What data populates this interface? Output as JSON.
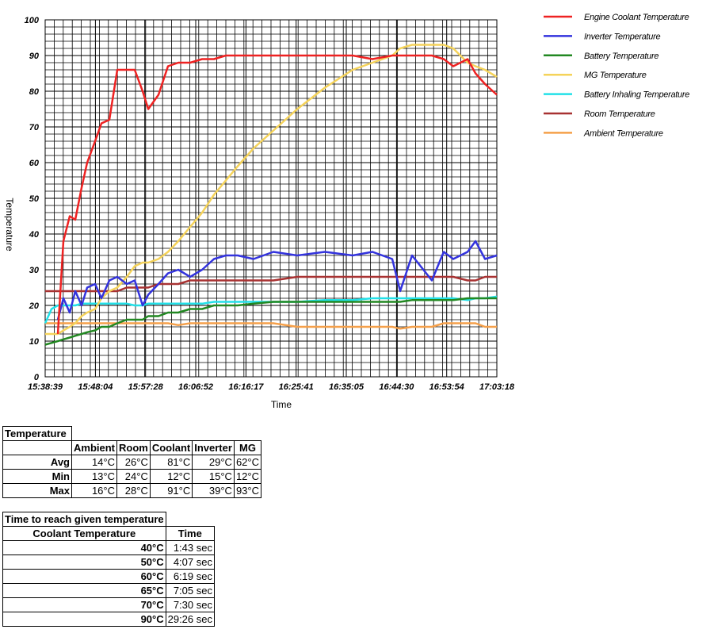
{
  "chart_data": {
    "type": "line",
    "x_label": "Time",
    "y_label": "Temperature",
    "x": [
      "15:38:39",
      "15:39:50",
      "15:41:02",
      "15:42:04",
      "15:43:15",
      "15:44:18",
      "15:45:29",
      "15:46:31",
      "15:48:00",
      "15:49:12",
      "15:50:41",
      "15:52:10",
      "15:53:57",
      "15:55:26",
      "15:56:55",
      "15:57:58",
      "15:59:53",
      "16:01:40",
      "16:03:36",
      "16:05:50",
      "16:08:04",
      "16:10:17",
      "16:12:31",
      "16:14:44",
      "16:17:42",
      "16:21:25",
      "16:25:53",
      "16:31:04",
      "16:36:16",
      "16:39:59",
      "16:43:42",
      "16:45:11",
      "16:47:25",
      "16:51:07",
      "16:53:21",
      "16:55:08",
      "16:57:49",
      "16:59:18",
      "17:01:05",
      "17:03:18"
    ],
    "xlim": [
      "15:38:39",
      "17:03:18"
    ],
    "xticks": [
      "15:38:39",
      "15:48:04",
      "15:57:28",
      "16:06:52",
      "16:16:17",
      "16:25:41",
      "16:35:05",
      "16:44:30",
      "16:53:54",
      "17:03:18"
    ],
    "ylim": [
      0,
      100
    ],
    "yticks": [
      0,
      10,
      20,
      30,
      40,
      50,
      60,
      70,
      80,
      90,
      100
    ],
    "grid": true,
    "legend": "right",
    "series": [
      {
        "name": "Engine Coolant Temperature",
        "color": "#ee2222",
        "values": [
          null,
          null,
          12,
          38,
          45,
          44,
          53,
          60,
          66,
          71,
          72,
          86,
          86,
          86,
          80,
          75,
          79,
          87,
          88,
          88,
          89,
          89,
          90,
          90,
          90,
          90,
          90,
          90,
          90,
          89,
          90,
          90,
          90,
          90,
          89,
          87,
          89,
          85,
          82,
          79
        ]
      },
      {
        "name": "Inverter Temperature",
        "color": "#3333dd",
        "values": [
          null,
          null,
          16,
          22,
          18,
          24,
          20,
          25,
          26,
          22,
          27,
          28,
          26,
          27,
          20,
          23,
          26,
          29,
          30,
          28,
          30,
          33,
          34,
          34,
          33,
          35,
          34,
          35,
          34,
          35,
          33,
          24,
          34,
          27,
          35,
          33,
          35,
          38,
          33,
          34
        ]
      },
      {
        "name": "Battery Temperature",
        "color": "#228822",
        "values": [
          9,
          9.5,
          10,
          10.5,
          11,
          11.5,
          12,
          12.5,
          13,
          14,
          14,
          15,
          16,
          16,
          16,
          17,
          17,
          18,
          18,
          19,
          19,
          20,
          20,
          20,
          20.5,
          21,
          21,
          21,
          21,
          21,
          21,
          21,
          21.5,
          21.5,
          21.5,
          21.5,
          22,
          22,
          22,
          22
        ]
      },
      {
        "name": "MG Temperature",
        "color": "#f5d35a",
        "values": [
          12,
          12,
          12,
          13,
          14,
          15,
          17,
          18,
          19,
          22,
          24,
          25,
          28,
          31,
          32,
          32,
          33,
          35,
          38,
          42,
          46,
          51,
          55,
          59,
          64,
          69,
          75,
          81,
          86,
          88,
          90,
          92,
          93,
          93,
          93,
          92,
          88,
          87,
          86,
          84
        ]
      },
      {
        "name": "Battery Inhaling Temperature",
        "color": "#22e0e8",
        "values": [
          15,
          19,
          20,
          20,
          20,
          20,
          20.5,
          20.5,
          20.5,
          20.5,
          20.5,
          20.5,
          20.5,
          20,
          20,
          20.5,
          20.5,
          20.5,
          20.5,
          20.5,
          20.5,
          21,
          21,
          21,
          21,
          21,
          21,
          21.5,
          21.5,
          22,
          22,
          22,
          22,
          22,
          22,
          22,
          21.5,
          22,
          22,
          22.5
        ]
      },
      {
        "name": "Room Temperature",
        "color": "#a83232",
        "values": [
          24,
          24,
          24,
          24,
          24,
          24,
          24,
          24,
          24,
          24,
          24,
          24,
          25,
          25,
          25,
          25,
          26,
          26,
          26,
          27,
          27,
          27,
          27,
          27,
          27,
          27,
          28,
          28,
          28,
          28,
          28,
          28,
          28,
          28,
          28,
          28,
          27,
          27,
          28,
          28
        ]
      },
      {
        "name": "Ambient Temperature",
        "color": "#f5a04a",
        "values": [
          15,
          15,
          15,
          15,
          15,
          15,
          15,
          15,
          15,
          15,
          15,
          15,
          15,
          15,
          15,
          15,
          15,
          15,
          14.5,
          15,
          15,
          15,
          15,
          15,
          15,
          15,
          14,
          14,
          14,
          14,
          14,
          13.5,
          14,
          14,
          15,
          15,
          15,
          15,
          14,
          14
        ]
      }
    ]
  },
  "temperature_table": {
    "title": "Temperature",
    "columns": [
      "Ambient",
      "Room",
      "Coolant",
      "Inverter",
      "MG"
    ],
    "rows": [
      {
        "label": "Avg",
        "cells": [
          "14°C",
          "26°C",
          "81°C",
          "29°C",
          "62°C"
        ]
      },
      {
        "label": "Min",
        "cells": [
          "13°C",
          "24°C",
          "12°C",
          "15°C",
          "12°C"
        ]
      },
      {
        "label": "Max",
        "cells": [
          "16°C",
          "28°C",
          "91°C",
          "39°C",
          "93°C"
        ]
      }
    ]
  },
  "time_table": {
    "title": "Time to reach given temperature",
    "columns": [
      "Coolant Temperature",
      "Time"
    ],
    "rows": [
      [
        "40°C",
        "1:43 sec"
      ],
      [
        "50°C",
        "4:07 sec"
      ],
      [
        "60°C",
        "6:19 sec"
      ],
      [
        "65°C",
        "7:05 sec"
      ],
      [
        "70°C",
        "7:30 sec"
      ],
      [
        "90°C",
        "29:26 sec"
      ]
    ]
  }
}
